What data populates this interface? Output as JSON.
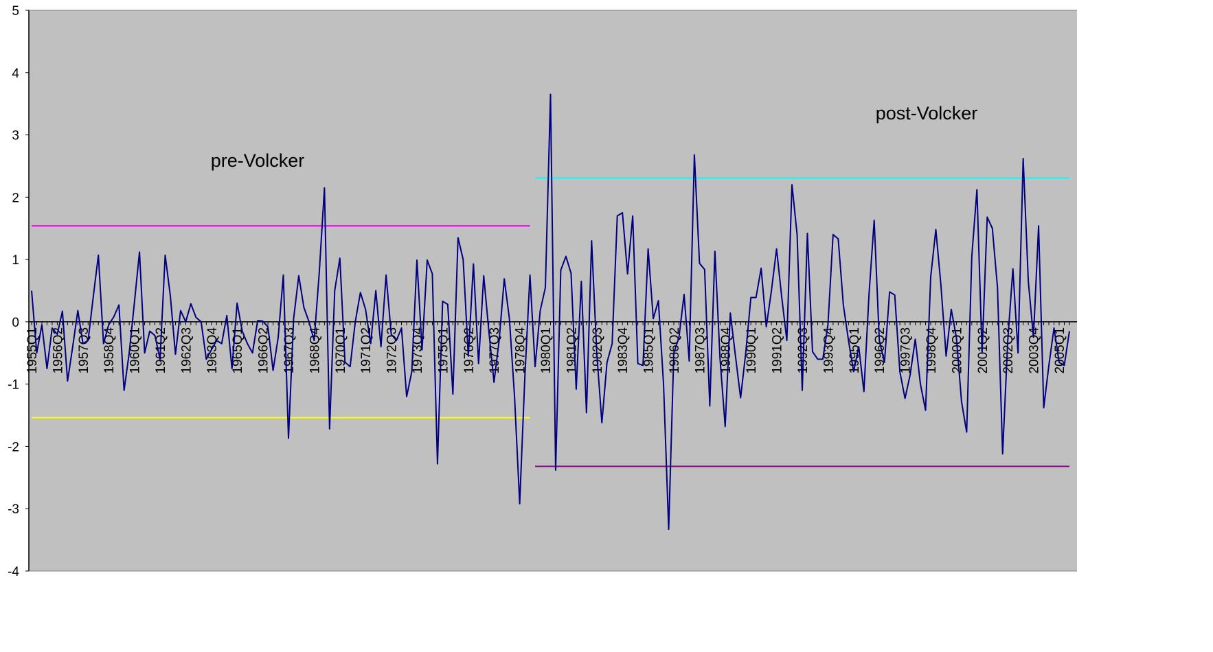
{
  "chart_data": {
    "type": "line",
    "categories": [
      "1955Q1",
      null,
      null,
      null,
      null,
      "1956Q2",
      null,
      null,
      null,
      null,
      "1957Q3",
      null,
      null,
      null,
      null,
      "1958Q4",
      null,
      null,
      null,
      null,
      "1960Q1",
      null,
      null,
      null,
      null,
      "1961Q2",
      null,
      null,
      null,
      null,
      "1962Q3",
      null,
      null,
      null,
      null,
      "1963Q4",
      null,
      null,
      null,
      null,
      "1965Q1",
      null,
      null,
      null,
      null,
      "1966Q2",
      null,
      null,
      null,
      null,
      "1967Q3",
      null,
      null,
      null,
      null,
      "1968Q4",
      null,
      null,
      null,
      null,
      "1970Q1",
      null,
      null,
      null,
      null,
      "1971Q2",
      null,
      null,
      null,
      null,
      "1972Q3",
      null,
      null,
      null,
      null,
      "1973Q4",
      null,
      null,
      null,
      null,
      "1975Q1",
      null,
      null,
      null,
      null,
      "1976Q2",
      null,
      null,
      null,
      null,
      "1977Q3",
      null,
      null,
      null,
      null,
      "1978Q4",
      null,
      null,
      null,
      null,
      "1980Q1",
      null,
      null,
      null,
      null,
      "1981Q2",
      null,
      null,
      null,
      null,
      "1982Q3",
      null,
      null,
      null,
      null,
      "1983Q4",
      null,
      null,
      null,
      null,
      "1985Q1",
      null,
      null,
      null,
      null,
      "1986Q2",
      null,
      null,
      null,
      null,
      "1987Q3",
      null,
      null,
      null,
      null,
      "1988Q4",
      null,
      null,
      null,
      null,
      "1990Q1",
      null,
      null,
      null,
      null,
      "1991Q2",
      null,
      null,
      null,
      null,
      "1992Q3",
      null,
      null,
      null,
      null,
      "1993Q4",
      null,
      null,
      null,
      null,
      "1995Q1",
      null,
      null,
      null,
      null,
      "1996Q2",
      null,
      null,
      null,
      null,
      "1997Q3",
      null,
      null,
      null,
      null,
      "1998Q4",
      null,
      null,
      null,
      null,
      "2000Q1",
      null,
      null,
      null,
      null,
      "2001Q2",
      null,
      null,
      null,
      null,
      "2002Q3",
      null,
      null,
      null,
      null,
      "2003Q4",
      null,
      null,
      null,
      null,
      "2005Q1",
      null,
      null
    ],
    "series": [
      {
        "color": "#000080",
        "values": [
          0.5,
          -0.5,
          -0.05,
          -0.75,
          -0.1,
          -0.2,
          0.17,
          -0.95,
          -0.4,
          0.18,
          -0.35,
          -0.3,
          0.4,
          1.07,
          -0.35,
          -0.05,
          0.08,
          0.27,
          -1.1,
          -0.5,
          0.3,
          1.12,
          -0.5,
          -0.15,
          -0.22,
          -0.6,
          1.07,
          0.42,
          -0.52,
          0.18,
          0,
          0.29,
          0.07,
          0,
          -0.6,
          -0.45,
          -0.3,
          -0.35,
          0.1,
          -0.75,
          0.3,
          -0.15,
          -0.35,
          -0.5,
          0.02,
          0.01,
          -0.08,
          -0.78,
          -0.25,
          0.75,
          -1.87,
          0.05,
          0.74,
          0.23,
          0,
          -0.3,
          0.8,
          2.15,
          -1.72,
          0.5,
          1.02,
          -0.65,
          -0.72,
          0,
          0.47,
          0.2,
          -0.35,
          0.5,
          -0.4,
          0.75,
          -0.2,
          -0.3,
          -0.1,
          -1.2,
          -0.8,
          0.99,
          -0.45,
          0.99,
          0.77,
          -2.28,
          0.33,
          0.28,
          -1.16,
          1.35,
          1,
          -0.55,
          0.93,
          -0.67,
          0.74,
          -0.15,
          -0.97,
          -0.3,
          0.69,
          0.05,
          -1.2,
          -2.92,
          -0.9,
          0.75,
          -0.72,
          0.18,
          0.55,
          3.65,
          -2.38,
          0.83,
          1.05,
          0.78,
          -1.08,
          0.65,
          -1.46,
          1.3,
          -0.5,
          -1.62,
          -0.65,
          -0.35,
          1.7,
          1.75,
          0.77,
          1.7,
          -0.67,
          -0.7,
          1.17,
          0.05,
          0.34,
          -1,
          -3.33,
          -0.5,
          -0.25,
          0.44,
          -0.63,
          2.68,
          0.94,
          0.84,
          -1.35,
          1.13,
          -0.6,
          -1.68,
          0.14,
          -0.55,
          -1.22,
          -0.5,
          0.39,
          0.39,
          0.86,
          -0.08,
          0.5,
          1.17,
          0.4,
          -0.3,
          2.2,
          1.4,
          -1.1,
          1.42,
          -0.48,
          -0.6,
          -0.6,
          -0.05,
          1.4,
          1.33,
          0.27,
          -0.3,
          -0.8,
          -0.4,
          -1.12,
          0.45,
          1.63,
          -0.3,
          -0.65,
          0.48,
          0.43,
          -0.8,
          -1.23,
          -0.85,
          -0.28,
          -1,
          -1.42,
          0.72,
          1.48,
          0.58,
          -0.55,
          0.2,
          -0.25,
          -1.28,
          -1.77,
          1.05,
          2.12,
          -0.5,
          1.68,
          1.5,
          0.55,
          -2.12,
          -0.3,
          0.85,
          -0.5,
          2.62,
          0.65,
          -0.25,
          1.54,
          -1.38,
          -0.7,
          -0.1,
          -0.65,
          -0.7,
          -0.15
        ]
      }
    ],
    "reference_lines": [
      {
        "value": 1.54,
        "color": "#ff00ff",
        "from": 0,
        "to": 97
      },
      {
        "value": -1.54,
        "color": "#ffff00",
        "from": 0,
        "to": 97
      },
      {
        "value": 2.31,
        "color": "#00ffff",
        "from": 98,
        "to": 202
      },
      {
        "value": -2.32,
        "color": "#800080",
        "from": 98,
        "to": 202
      }
    ],
    "annotations": [
      {
        "text": "pre-Volcker"
      },
      {
        "text": "post-Volcker"
      }
    ],
    "ylim": [
      -4,
      5
    ],
    "yticks": [
      -4,
      -3,
      -2,
      -1,
      0,
      1,
      2,
      3,
      4,
      5
    ],
    "background": "#c0c0c0"
  }
}
